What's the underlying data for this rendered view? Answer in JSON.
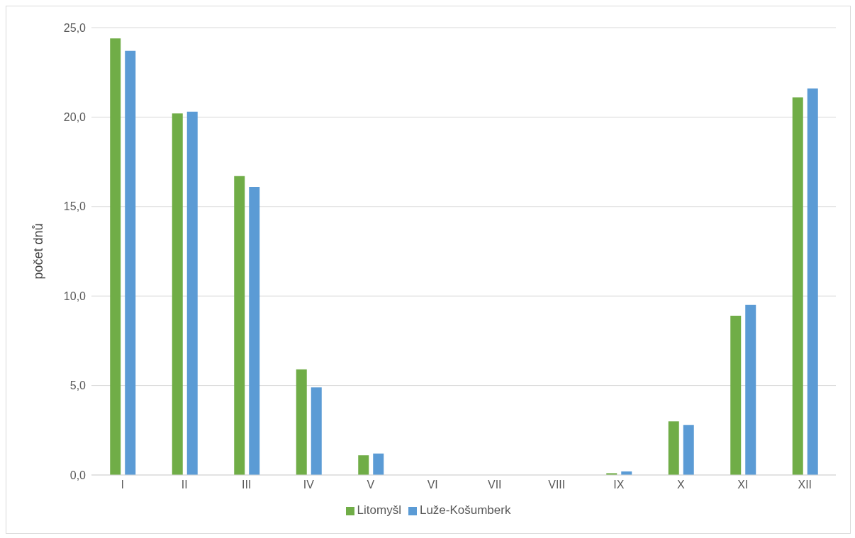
{
  "chart_data": {
    "type": "bar",
    "ylabel": "počet dnů",
    "categories": [
      "I",
      "II",
      "III",
      "IV",
      "V",
      "VI",
      "VII",
      "VIII",
      "IX",
      "X",
      "XI",
      "XII"
    ],
    "series": [
      {
        "name": "Litomyšl",
        "color": "#70ad47",
        "values": [
          24.4,
          20.2,
          16.7,
          5.9,
          1.1,
          0,
          0,
          0,
          0.1,
          3.0,
          8.9,
          21.1
        ]
      },
      {
        "name": "Luže-Košumberk",
        "color": "#5b9bd5",
        "values": [
          23.7,
          20.3,
          16.1,
          4.9,
          1.2,
          0,
          0,
          0,
          0.2,
          2.8,
          9.5,
          21.6
        ]
      }
    ],
    "ylim": [
      0,
      25
    ],
    "yticks": [
      {
        "value": 0,
        "label": "0,0"
      },
      {
        "value": 5,
        "label": "5,0"
      },
      {
        "value": 10,
        "label": "10,0"
      },
      {
        "value": 15,
        "label": "15,0"
      },
      {
        "value": 20,
        "label": "20,0"
      },
      {
        "value": 25,
        "label": "25,0"
      }
    ],
    "grid": "y",
    "legend": "bottom"
  }
}
